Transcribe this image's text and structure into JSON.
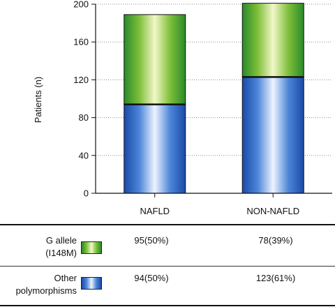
{
  "chart_data": {
    "type": "bar",
    "stacked": true,
    "categories": [
      "NAFLD",
      "NON-NAFLD"
    ],
    "series": [
      {
        "name": "Other polymorphisms",
        "values": [
          94,
          123
        ],
        "color": "#1a4aa8"
      },
      {
        "name": "G allele (I148M)",
        "values": [
          95,
          78
        ],
        "color": "#2a8a2a"
      }
    ],
    "ylabel": "Patients (n)",
    "ylim": [
      0,
      200
    ],
    "yticks": [
      0,
      40,
      80,
      120,
      160,
      200
    ],
    "grid": true
  },
  "table": {
    "rows": [
      {
        "label_line1": "G allele",
        "label_line2": "(I148M)",
        "swatch": "green",
        "values": [
          "95(50%)",
          "78(39%)"
        ]
      },
      {
        "label_line1": "Other",
        "label_line2": "polymorphisms",
        "swatch": "blue",
        "values": [
          "94(50%)",
          "123(61%)"
        ]
      }
    ]
  }
}
